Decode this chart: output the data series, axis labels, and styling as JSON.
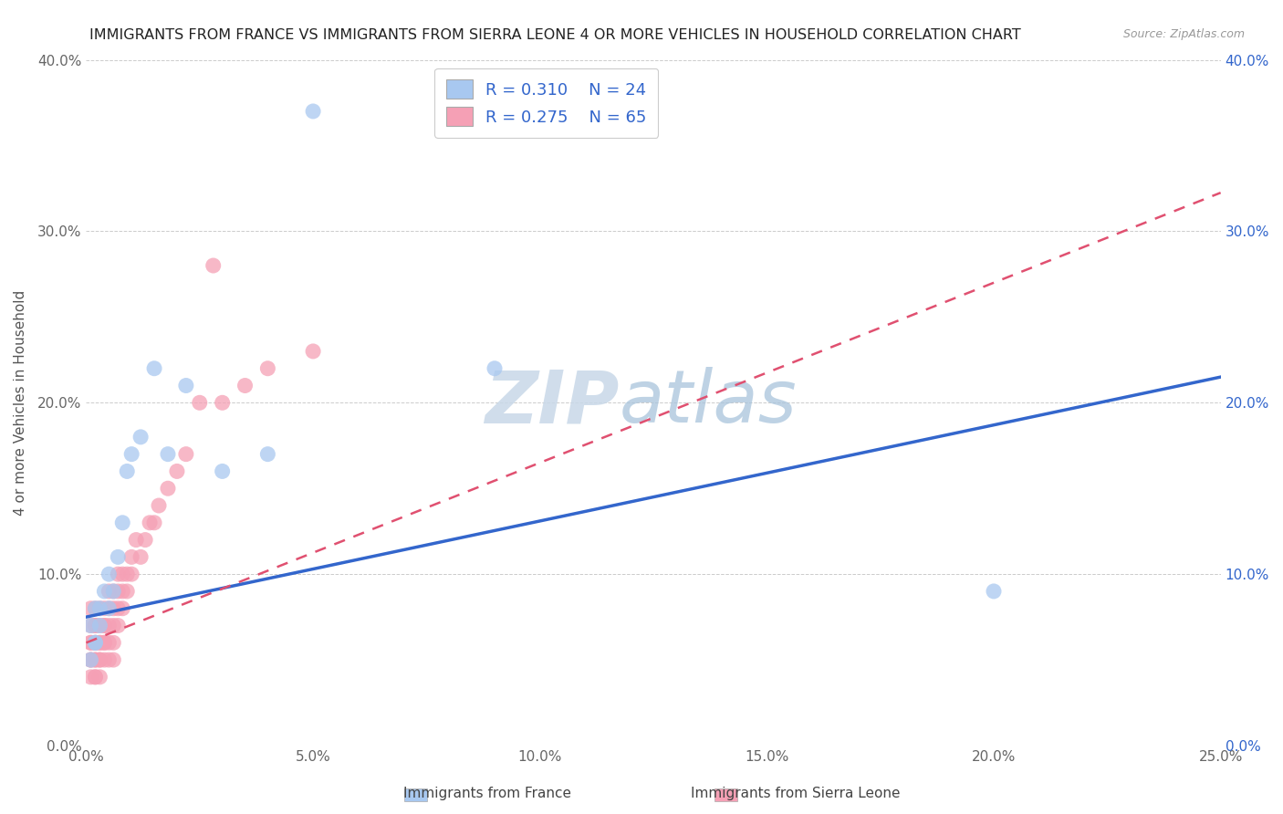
{
  "title": "IMMIGRANTS FROM FRANCE VS IMMIGRANTS FROM SIERRA LEONE 4 OR MORE VEHICLES IN HOUSEHOLD CORRELATION CHART",
  "source": "Source: ZipAtlas.com",
  "ylabel": "4 or more Vehicles in Household",
  "xlim": [
    0.0,
    0.25
  ],
  "ylim": [
    0.0,
    0.4
  ],
  "xticks": [
    0.0,
    0.05,
    0.1,
    0.15,
    0.2,
    0.25
  ],
  "yticks": [
    0.0,
    0.1,
    0.2,
    0.3,
    0.4
  ],
  "xtick_labels": [
    "0.0%",
    "5.0%",
    "10.0%",
    "15.0%",
    "20.0%",
    "25.0%"
  ],
  "ytick_labels": [
    "0.0%",
    "10.0%",
    "20.0%",
    "30.0%",
    "40.0%"
  ],
  "france_color": "#A8C8F0",
  "sierra_leone_color": "#F5A0B5",
  "france_line_color": "#3366CC",
  "sierra_leone_line_color": "#E05070",
  "france_R": 0.31,
  "france_N": 24,
  "sierra_leone_R": 0.275,
  "sierra_leone_N": 65,
  "legend_label_france": "Immigrants from France",
  "legend_label_sierra": "Immigrants from Sierra Leone",
  "watermark_zip": "ZIP",
  "watermark_atlas": "atlas",
  "france_x": [
    0.001,
    0.001,
    0.002,
    0.002,
    0.002,
    0.003,
    0.003,
    0.004,
    0.005,
    0.005,
    0.006,
    0.007,
    0.008,
    0.009,
    0.01,
    0.012,
    0.015,
    0.018,
    0.022,
    0.03,
    0.04,
    0.05,
    0.09,
    0.2
  ],
  "france_y": [
    0.05,
    0.07,
    0.06,
    0.08,
    0.06,
    0.08,
    0.07,
    0.09,
    0.08,
    0.1,
    0.09,
    0.11,
    0.13,
    0.16,
    0.17,
    0.18,
    0.22,
    0.17,
    0.21,
    0.16,
    0.17,
    0.37,
    0.22,
    0.09
  ],
  "sierra_x": [
    0.001,
    0.001,
    0.001,
    0.001,
    0.001,
    0.001,
    0.001,
    0.002,
    0.002,
    0.002,
    0.002,
    0.002,
    0.002,
    0.002,
    0.002,
    0.002,
    0.003,
    0.003,
    0.003,
    0.003,
    0.003,
    0.003,
    0.003,
    0.004,
    0.004,
    0.004,
    0.004,
    0.004,
    0.004,
    0.005,
    0.005,
    0.005,
    0.005,
    0.005,
    0.006,
    0.006,
    0.006,
    0.006,
    0.006,
    0.007,
    0.007,
    0.007,
    0.007,
    0.008,
    0.008,
    0.008,
    0.009,
    0.009,
    0.01,
    0.01,
    0.011,
    0.012,
    0.013,
    0.014,
    0.015,
    0.016,
    0.018,
    0.02,
    0.022,
    0.025,
    0.028,
    0.03,
    0.035,
    0.04,
    0.05
  ],
  "sierra_y": [
    0.04,
    0.05,
    0.06,
    0.07,
    0.08,
    0.05,
    0.06,
    0.04,
    0.05,
    0.06,
    0.07,
    0.08,
    0.05,
    0.04,
    0.06,
    0.07,
    0.05,
    0.06,
    0.07,
    0.08,
    0.05,
    0.06,
    0.04,
    0.06,
    0.07,
    0.08,
    0.05,
    0.06,
    0.07,
    0.06,
    0.07,
    0.08,
    0.09,
    0.05,
    0.07,
    0.08,
    0.09,
    0.05,
    0.06,
    0.07,
    0.08,
    0.09,
    0.1,
    0.08,
    0.09,
    0.1,
    0.09,
    0.1,
    0.1,
    0.11,
    0.12,
    0.11,
    0.12,
    0.13,
    0.13,
    0.14,
    0.15,
    0.16,
    0.17,
    0.2,
    0.28,
    0.2,
    0.21,
    0.22,
    0.23
  ],
  "france_line_x0": 0.0,
  "france_line_y0": 0.075,
  "france_line_x1": 0.25,
  "france_line_y1": 0.215,
  "sierra_line_x0": 0.0,
  "sierra_line_y0": 0.06,
  "sierra_line_x1": 0.1,
  "sierra_line_y1": 0.165
}
